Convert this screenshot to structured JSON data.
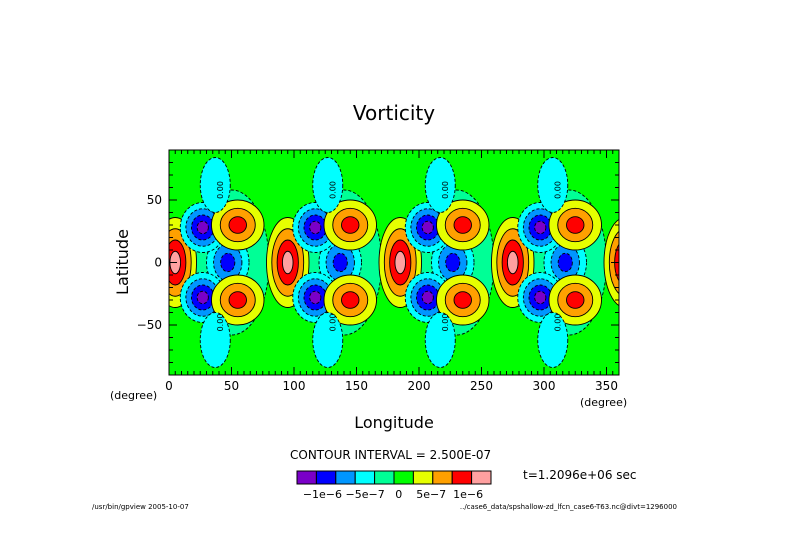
{
  "chart_data": {
    "type": "heatmap",
    "title": "Vorticity",
    "xlabel": "Longitude",
    "ylabel": "Latitude",
    "x_unit": "(degree)",
    "y_unit": "(degree)",
    "xlim": [
      0,
      360
    ],
    "ylim": [
      -90,
      90
    ],
    "x_ticks": [
      0,
      50,
      100,
      150,
      200,
      250,
      300,
      350
    ],
    "y_ticks": [
      50,
      0,
      -50
    ],
    "contour_interval_text": "CONTOUR INTERVAL = 2.500E-07",
    "time_text": "t=1.2096e+06 sec",
    "contour_labels": [
      "0.00",
      "0.00",
      "0.00",
      "0.00",
      "0.00",
      "0.00",
      "0.00",
      "0.00"
    ],
    "pattern": {
      "wave_number": 4,
      "phase_lon_deg": 5,
      "note": "vorticity anomaly pattern repeating every 90 degrees longitude"
    },
    "colorbar": {
      "levels": [
        "-1e-6",
        "-5e-7",
        "0",
        "5e-7",
        "1e-6"
      ],
      "level_labels_text": "−1e−6 −5e−7   0    5e−7  1e−6",
      "colors": [
        "#7a00c8",
        "#0000ff",
        "#0096ff",
        "#00ffff",
        "#00ff96",
        "#00ff00",
        "#e6ff00",
        "#ffa000",
        "#ff0000",
        "#ffa0a0"
      ]
    }
  },
  "footer": {
    "left": "/usr/bin/gpview  2005-10-07",
    "right": "../case6_data/spshallow-zd_lfcn_case6-T63.nc@divt=1296000"
  }
}
